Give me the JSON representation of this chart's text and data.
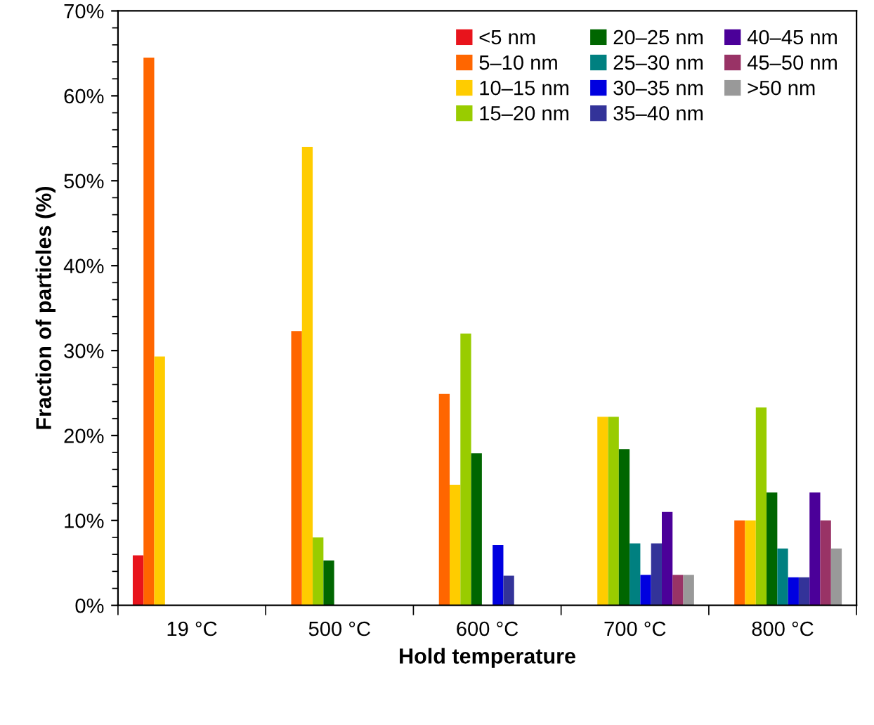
{
  "chart_data": {
    "type": "bar",
    "xlabel": "Hold temperature",
    "ylabel": "Fraction of particles (%)",
    "categories": [
      "19 °C",
      "500 °C",
      "600 °C",
      "700 °C",
      "800 °C"
    ],
    "series": [
      {
        "name": "<5 nm",
        "color": "#e8141c",
        "values": [
          5.9,
          null,
          null,
          null,
          null
        ]
      },
      {
        "name": "5–10 nm",
        "color": "#ff6600",
        "values": [
          64.5,
          32.3,
          24.9,
          null,
          10
        ]
      },
      {
        "name": "10–15 nm",
        "color": "#ffcc00",
        "values": [
          29.3,
          54,
          14.2,
          22.2,
          10
        ]
      },
      {
        "name": "15–20 nm",
        "color": "#99cc00",
        "values": [
          null,
          8,
          32,
          22.2,
          23.3
        ]
      },
      {
        "name": "20–25 nm",
        "color": "#006600",
        "values": [
          null,
          5.3,
          17.9,
          18.4,
          13.3
        ]
      },
      {
        "name": "25–30 nm",
        "color": "#008080",
        "values": [
          null,
          null,
          null,
          7.3,
          6.7
        ]
      },
      {
        "name": "30–35 nm",
        "color": "#0000e0",
        "values": [
          null,
          null,
          7.1,
          3.6,
          3.3
        ]
      },
      {
        "name": "35–40 nm",
        "color": "#333399",
        "values": [
          null,
          null,
          3.5,
          7.3,
          3.3
        ]
      },
      {
        "name": "40–45 nm",
        "color": "#4b0099",
        "values": [
          null,
          null,
          null,
          11,
          13.3
        ]
      },
      {
        "name": "45–50 nm",
        "color": "#993366",
        "values": [
          null,
          null,
          null,
          3.6,
          10
        ]
      },
      {
        "name": ">50 nm",
        "color": "#999999",
        "values": [
          null,
          null,
          null,
          3.6,
          6.7
        ]
      }
    ],
    "ylim": [
      0,
      70
    ],
    "yticks": [
      {
        "value": 0,
        "label": "0%"
      },
      {
        "value": 10,
        "label": "10%"
      },
      {
        "value": 20,
        "label": "20%"
      },
      {
        "value": 30,
        "label": "30%"
      },
      {
        "value": 40,
        "label": "40%"
      },
      {
        "value": 50,
        "label": "50%"
      },
      {
        "value": 60,
        "label": "60%"
      },
      {
        "value": 70,
        "label": "70%"
      }
    ],
    "legend": "top right",
    "grid": false
  }
}
